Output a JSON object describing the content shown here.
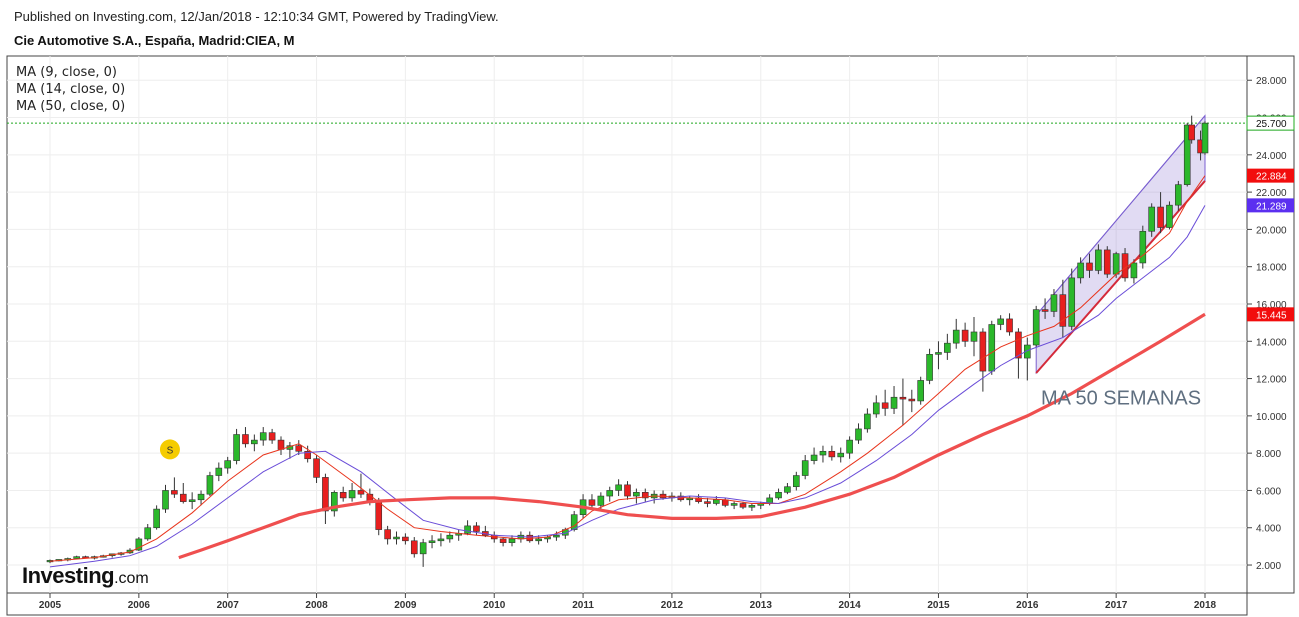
{
  "header": {
    "published": "Published on Investing.com, 12/Jan/2018 - 12:10:34 GMT, Powered by TradingView.",
    "title": "Cie Automotive S.A., España, Madrid:CIEA, M"
  },
  "legend": [
    "MA (9, close, 0)",
    "MA (14, close, 0)",
    "MA (50, close, 0)"
  ],
  "logo": {
    "bold": "Investing",
    "suffix": ".com"
  },
  "chart_data": {
    "type": "candlestick",
    "title": "Cie Automotive S.A., España, Madrid:CIEA, M",
    "x_ticks": [
      "2005",
      "2006",
      "2007",
      "2008",
      "2009",
      "2010",
      "2011",
      "2012",
      "2013",
      "2014",
      "2015",
      "2016",
      "2017",
      "2018"
    ],
    "y_ticks": [
      "2.000",
      "4.000",
      "6.000",
      "8.000",
      "10.000",
      "12.000",
      "14.000",
      "16.000",
      "18.000",
      "20.000",
      "22.000",
      "24.000",
      "26.000",
      "28.000"
    ],
    "ylim": [
      0.5,
      29.3
    ],
    "price_labels": [
      {
        "text": "25.700",
        "value": 25.7,
        "color": "#ffffff"
      },
      {
        "text": "22.884",
        "value": 22.884,
        "color": "#f20d0d"
      },
      {
        "text": "21.289",
        "value": 21.289,
        "color": "#5b2ff0"
      },
      {
        "text": "15.445",
        "value": 15.445,
        "color": "#f20d0d"
      }
    ],
    "last_price": 25.7,
    "annotation": "MA 50 SEMANAS",
    "marker": "S",
    "marker_time": 2006.35,
    "marker_value": 8.2,
    "channel": {
      "lower": [
        [
          2016.1,
          12.3
        ],
        [
          2018.0,
          22.6
        ]
      ],
      "upper": [
        [
          2016.1,
          15.4
        ],
        [
          2018.0,
          26.1
        ]
      ]
    },
    "series": [
      {
        "name": "MA (9, close, 0)",
        "color": "#e8341c",
        "points": [
          [
            2005.0,
            2.2
          ],
          [
            2005.5,
            2.4
          ],
          [
            2005.9,
            2.7
          ],
          [
            2006.2,
            3.4
          ],
          [
            2006.6,
            4.8
          ],
          [
            2007.0,
            6.5
          ],
          [
            2007.4,
            7.9
          ],
          [
            2007.8,
            8.5
          ],
          [
            2008.0,
            7.9
          ],
          [
            2008.4,
            6.5
          ],
          [
            2008.8,
            5.0
          ],
          [
            2009.1,
            4.0
          ],
          [
            2009.4,
            3.8
          ],
          [
            2009.8,
            3.6
          ],
          [
            2010.3,
            3.4
          ],
          [
            2010.6,
            3.5
          ],
          [
            2010.9,
            4.1
          ],
          [
            2011.1,
            4.9
          ],
          [
            2011.4,
            5.5
          ],
          [
            2011.8,
            5.7
          ],
          [
            2012.2,
            5.6
          ],
          [
            2012.6,
            5.5
          ],
          [
            2012.9,
            5.3
          ],
          [
            2013.2,
            5.3
          ],
          [
            2013.5,
            5.8
          ],
          [
            2013.9,
            7.0
          ],
          [
            2014.2,
            8.0
          ],
          [
            2014.6,
            9.5
          ],
          [
            2015.0,
            11.2
          ],
          [
            2015.3,
            12.5
          ],
          [
            2015.7,
            13.7
          ],
          [
            2016.0,
            14.3
          ],
          [
            2016.3,
            14.8
          ],
          [
            2016.6,
            15.8
          ],
          [
            2017.0,
            17.6
          ],
          [
            2017.3,
            18.6
          ],
          [
            2017.6,
            19.8
          ],
          [
            2017.8,
            21.5
          ],
          [
            2018.0,
            22.884
          ]
        ]
      },
      {
        "name": "MA (14, close, 0)",
        "color": "#6a4dd8",
        "points": [
          [
            2005.0,
            1.9
          ],
          [
            2005.5,
            2.2
          ],
          [
            2005.9,
            2.5
          ],
          [
            2006.2,
            3.0
          ],
          [
            2006.6,
            4.2
          ],
          [
            2007.0,
            5.6
          ],
          [
            2007.4,
            7.0
          ],
          [
            2007.8,
            8.0
          ],
          [
            2008.1,
            8.1
          ],
          [
            2008.5,
            7.0
          ],
          [
            2008.9,
            5.5
          ],
          [
            2009.2,
            4.4
          ],
          [
            2009.6,
            3.9
          ],
          [
            2010.0,
            3.6
          ],
          [
            2010.4,
            3.5
          ],
          [
            2010.8,
            3.7
          ],
          [
            2011.1,
            4.4
          ],
          [
            2011.4,
            5.0
          ],
          [
            2011.8,
            5.5
          ],
          [
            2012.2,
            5.7
          ],
          [
            2012.6,
            5.6
          ],
          [
            2012.9,
            5.4
          ],
          [
            2013.2,
            5.3
          ],
          [
            2013.5,
            5.6
          ],
          [
            2013.9,
            6.4
          ],
          [
            2014.3,
            7.6
          ],
          [
            2014.7,
            9.0
          ],
          [
            2015.0,
            10.3
          ],
          [
            2015.4,
            11.7
          ],
          [
            2015.7,
            12.7
          ],
          [
            2016.0,
            13.5
          ],
          [
            2016.4,
            14.2
          ],
          [
            2016.8,
            15.4
          ],
          [
            2017.0,
            16.3
          ],
          [
            2017.3,
            17.4
          ],
          [
            2017.6,
            18.5
          ],
          [
            2017.8,
            19.6
          ],
          [
            2018.0,
            21.289
          ]
        ]
      },
      {
        "name": "MA (50, close, 0)",
        "color": "#ef4f4f",
        "points": [
          [
            2006.45,
            2.4
          ],
          [
            2006.7,
            2.8
          ],
          [
            2007.0,
            3.3
          ],
          [
            2007.4,
            4.0
          ],
          [
            2007.8,
            4.7
          ],
          [
            2008.2,
            5.1
          ],
          [
            2008.6,
            5.4
          ],
          [
            2009.0,
            5.5
          ],
          [
            2009.5,
            5.6
          ],
          [
            2010.0,
            5.6
          ],
          [
            2010.5,
            5.4
          ],
          [
            2011.0,
            5.1
          ],
          [
            2011.5,
            4.7
          ],
          [
            2012.0,
            4.5
          ],
          [
            2012.5,
            4.5
          ],
          [
            2013.0,
            4.6
          ],
          [
            2013.5,
            5.1
          ],
          [
            2014.0,
            5.8
          ],
          [
            2014.5,
            6.7
          ],
          [
            2015.0,
            7.9
          ],
          [
            2015.5,
            9.0
          ],
          [
            2016.0,
            10.0
          ],
          [
            2016.5,
            11.2
          ],
          [
            2017.0,
            12.6
          ],
          [
            2017.5,
            14.0
          ],
          [
            2018.0,
            15.445
          ]
        ]
      }
    ],
    "candles": [
      [
        2005.0,
        2.2,
        2.3,
        2.1,
        2.25
      ],
      [
        2005.1,
        2.25,
        2.3,
        2.2,
        2.3
      ],
      [
        2005.2,
        2.3,
        2.4,
        2.2,
        2.35
      ],
      [
        2005.3,
        2.35,
        2.5,
        2.3,
        2.45
      ],
      [
        2005.4,
        2.45,
        2.5,
        2.35,
        2.4
      ],
      [
        2005.5,
        2.4,
        2.5,
        2.3,
        2.45
      ],
      [
        2005.6,
        2.45,
        2.55,
        2.4,
        2.5
      ],
      [
        2005.7,
        2.5,
        2.6,
        2.4,
        2.6
      ],
      [
        2005.8,
        2.6,
        2.7,
        2.5,
        2.65
      ],
      [
        2005.9,
        2.65,
        2.9,
        2.6,
        2.8
      ],
      [
        2006.0,
        2.8,
        3.5,
        2.75,
        3.4
      ],
      [
        2006.1,
        3.4,
        4.2,
        3.3,
        4.0
      ],
      [
        2006.2,
        4.0,
        5.2,
        3.9,
        5.0
      ],
      [
        2006.3,
        5.0,
        6.3,
        4.8,
        6.0
      ],
      [
        2006.4,
        6.0,
        6.7,
        5.6,
        5.8
      ],
      [
        2006.5,
        5.8,
        6.4,
        5.3,
        5.4
      ],
      [
        2006.6,
        5.4,
        5.9,
        5.0,
        5.5
      ],
      [
        2006.7,
        5.5,
        6.0,
        5.2,
        5.8
      ],
      [
        2006.8,
        5.8,
        7.0,
        5.7,
        6.8
      ],
      [
        2006.9,
        6.8,
        7.5,
        6.5,
        7.2
      ],
      [
        2007.0,
        7.2,
        7.8,
        6.9,
        7.6
      ],
      [
        2007.1,
        7.6,
        9.3,
        7.4,
        9.0
      ],
      [
        2007.2,
        9.0,
        9.4,
        8.3,
        8.5
      ],
      [
        2007.3,
        8.5,
        9.0,
        8.1,
        8.7
      ],
      [
        2007.4,
        8.7,
        9.4,
        8.4,
        9.1
      ],
      [
        2007.5,
        9.1,
        9.3,
        8.5,
        8.7
      ],
      [
        2007.6,
        8.7,
        8.9,
        7.9,
        8.2
      ],
      [
        2007.7,
        8.2,
        8.6,
        7.7,
        8.4
      ],
      [
        2007.8,
        8.4,
        8.7,
        7.9,
        8.1
      ],
      [
        2007.9,
        8.1,
        8.4,
        7.5,
        7.7
      ],
      [
        2008.0,
        7.7,
        7.9,
        6.4,
        6.7
      ],
      [
        2008.1,
        6.7,
        6.9,
        4.2,
        4.9
      ],
      [
        2008.2,
        4.9,
        6.0,
        4.6,
        5.9
      ],
      [
        2008.3,
        5.9,
        6.2,
        5.4,
        5.6
      ],
      [
        2008.4,
        5.6,
        6.4,
        5.4,
        6.0
      ],
      [
        2008.5,
        6.0,
        6.9,
        5.6,
        5.8
      ],
      [
        2008.6,
        5.8,
        6.1,
        5.2,
        5.4
      ],
      [
        2008.7,
        5.4,
        5.6,
        3.6,
        3.9
      ],
      [
        2008.8,
        3.9,
        4.1,
        3.1,
        3.4
      ],
      [
        2008.9,
        3.4,
        3.8,
        3.1,
        3.5
      ],
      [
        2009.0,
        3.5,
        3.7,
        3.1,
        3.3
      ],
      [
        2009.1,
        3.3,
        3.5,
        2.4,
        2.6
      ],
      [
        2009.2,
        2.6,
        3.4,
        1.9,
        3.2
      ],
      [
        2009.3,
        3.2,
        3.6,
        2.9,
        3.3
      ],
      [
        2009.4,
        3.3,
        3.7,
        3.0,
        3.4
      ],
      [
        2009.5,
        3.4,
        3.8,
        3.2,
        3.6
      ],
      [
        2009.6,
        3.6,
        3.9,
        3.3,
        3.7
      ],
      [
        2009.7,
        3.7,
        4.4,
        3.6,
        4.1
      ],
      [
        2009.8,
        4.1,
        4.3,
        3.6,
        3.8
      ],
      [
        2009.9,
        3.8,
        4.1,
        3.5,
        3.6
      ],
      [
        2010.0,
        3.6,
        3.8,
        3.2,
        3.4
      ],
      [
        2010.1,
        3.4,
        3.5,
        3.0,
        3.2
      ],
      [
        2010.2,
        3.2,
        3.6,
        3.0,
        3.4
      ],
      [
        2010.3,
        3.4,
        3.8,
        3.2,
        3.6
      ],
      [
        2010.4,
        3.6,
        3.8,
        3.2,
        3.3
      ],
      [
        2010.5,
        3.3,
        3.6,
        3.1,
        3.4
      ],
      [
        2010.6,
        3.4,
        3.6,
        3.2,
        3.5
      ],
      [
        2010.7,
        3.5,
        3.8,
        3.3,
        3.6
      ],
      [
        2010.8,
        3.6,
        4.0,
        3.4,
        3.9
      ],
      [
        2010.9,
        3.9,
        4.9,
        3.8,
        4.7
      ],
      [
        2011.0,
        4.7,
        5.8,
        4.5,
        5.5
      ],
      [
        2011.1,
        5.5,
        5.8,
        5.0,
        5.2
      ],
      [
        2011.2,
        5.2,
        5.9,
        5.0,
        5.7
      ],
      [
        2011.3,
        5.7,
        6.2,
        5.4,
        6.0
      ],
      [
        2011.4,
        6.0,
        6.6,
        5.7,
        6.3
      ],
      [
        2011.5,
        6.3,
        6.5,
        5.5,
        5.7
      ],
      [
        2011.6,
        5.7,
        6.1,
        5.3,
        5.9
      ],
      [
        2011.7,
        5.9,
        6.1,
        5.4,
        5.6
      ],
      [
        2011.8,
        5.6,
        6.0,
        5.3,
        5.8
      ],
      [
        2011.9,
        5.8,
        6.0,
        5.5,
        5.6
      ],
      [
        2012.0,
        5.6,
        5.9,
        5.4,
        5.7
      ],
      [
        2012.1,
        5.7,
        5.9,
        5.4,
        5.5
      ],
      [
        2012.2,
        5.5,
        5.7,
        5.2,
        5.6
      ],
      [
        2012.3,
        5.6,
        5.8,
        5.3,
        5.4
      ],
      [
        2012.4,
        5.4,
        5.6,
        5.1,
        5.3
      ],
      [
        2012.5,
        5.3,
        5.7,
        5.2,
        5.5
      ],
      [
        2012.6,
        5.5,
        5.6,
        5.1,
        5.2
      ],
      [
        2012.7,
        5.2,
        5.4,
        5.0,
        5.3
      ],
      [
        2012.8,
        5.3,
        5.4,
        5.0,
        5.1
      ],
      [
        2012.9,
        5.1,
        5.3,
        4.9,
        5.2
      ],
      [
        2013.0,
        5.2,
        5.4,
        5.0,
        5.3
      ],
      [
        2013.1,
        5.3,
        5.8,
        5.2,
        5.6
      ],
      [
        2013.2,
        5.6,
        6.1,
        5.5,
        5.9
      ],
      [
        2013.3,
        5.9,
        6.4,
        5.8,
        6.2
      ],
      [
        2013.4,
        6.2,
        7.0,
        6.0,
        6.8
      ],
      [
        2013.5,
        6.8,
        7.9,
        6.6,
        7.6
      ],
      [
        2013.6,
        7.6,
        8.3,
        7.4,
        7.9
      ],
      [
        2013.7,
        7.9,
        8.4,
        7.5,
        8.1
      ],
      [
        2013.8,
        8.1,
        8.4,
        7.6,
        7.8
      ],
      [
        2013.9,
        7.8,
        8.3,
        7.5,
        8.0
      ],
      [
        2014.0,
        8.0,
        8.9,
        7.7,
        8.7
      ],
      [
        2014.1,
        8.7,
        9.6,
        8.5,
        9.3
      ],
      [
        2014.2,
        9.3,
        10.4,
        9.1,
        10.1
      ],
      [
        2014.3,
        10.1,
        11.1,
        9.9,
        10.7
      ],
      [
        2014.4,
        10.7,
        11.4,
        10.0,
        10.4
      ],
      [
        2014.5,
        10.4,
        11.6,
        10.1,
        11.0
      ],
      [
        2014.6,
        11.0,
        12.0,
        9.5,
        10.9
      ],
      [
        2014.7,
        10.9,
        11.4,
        10.2,
        10.8
      ],
      [
        2014.8,
        10.8,
        12.1,
        10.6,
        11.9
      ],
      [
        2014.9,
        11.9,
        13.6,
        11.7,
        13.3
      ],
      [
        2015.0,
        13.3,
        14.0,
        12.5,
        13.4
      ],
      [
        2015.1,
        13.4,
        14.4,
        13.0,
        13.9
      ],
      [
        2015.2,
        13.9,
        15.2,
        13.6,
        14.6
      ],
      [
        2015.3,
        14.6,
        15.0,
        13.7,
        14.0
      ],
      [
        2015.4,
        14.0,
        15.3,
        13.2,
        14.5
      ],
      [
        2015.5,
        14.5,
        14.7,
        11.3,
        12.4
      ],
      [
        2015.6,
        12.4,
        15.1,
        12.2,
        14.9
      ],
      [
        2015.7,
        14.9,
        15.4,
        14.6,
        15.2
      ],
      [
        2015.8,
        15.2,
        15.5,
        14.3,
        14.5
      ],
      [
        2015.9,
        14.5,
        14.7,
        12.0,
        13.1
      ],
      [
        2016.0,
        13.1,
        14.2,
        11.9,
        13.8
      ],
      [
        2016.1,
        13.8,
        15.9,
        13.7,
        15.7
      ],
      [
        2016.2,
        15.7,
        16.3,
        15.2,
        15.6
      ],
      [
        2016.3,
        15.6,
        16.8,
        15.3,
        16.5
      ],
      [
        2016.4,
        16.5,
        17.3,
        14.2,
        14.8
      ],
      [
        2016.5,
        14.8,
        17.9,
        14.6,
        17.4
      ],
      [
        2016.6,
        17.4,
        18.5,
        17.1,
        18.2
      ],
      [
        2016.7,
        18.2,
        18.7,
        17.4,
        17.8
      ],
      [
        2016.8,
        17.8,
        19.2,
        17.6,
        18.9
      ],
      [
        2016.9,
        18.9,
        19.1,
        17.4,
        17.6
      ],
      [
        2017.0,
        17.6,
        18.8,
        17.4,
        18.7
      ],
      [
        2017.1,
        18.7,
        19.0,
        17.2,
        17.4
      ],
      [
        2017.2,
        17.4,
        18.4,
        17.1,
        18.2
      ],
      [
        2017.3,
        18.2,
        20.2,
        17.9,
        19.9
      ],
      [
        2017.4,
        19.9,
        21.4,
        19.6,
        21.2
      ],
      [
        2017.5,
        21.2,
        22.0,
        19.8,
        20.1
      ],
      [
        2017.6,
        20.1,
        21.5,
        20.0,
        21.3
      ],
      [
        2017.7,
        21.3,
        22.6,
        21.0,
        22.4
      ],
      [
        2017.8,
        22.4,
        25.7,
        22.3,
        25.6
      ],
      [
        2017.85,
        25.6,
        26.1,
        24.6,
        24.8
      ],
      [
        2017.95,
        24.8,
        25.3,
        23.7,
        24.1
      ],
      [
        2018.0,
        24.1,
        25.8,
        24.0,
        25.7
      ]
    ]
  }
}
